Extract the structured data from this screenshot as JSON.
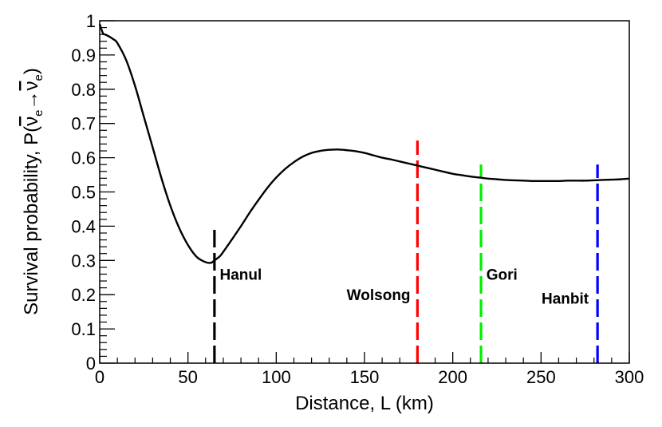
{
  "chart_data": {
    "type": "line",
    "title": "",
    "xlabel": "Distance, L (km)",
    "ylabel": "Survival probability, P(̅νₑ→̅νₑ)",
    "ylabel_parts": {
      "prefix": "Survival probability, P(",
      "nu1": "ν",
      "sub1": "e",
      "arrow": "→",
      "nu2": "ν",
      "sub2": "e",
      "suffix": ")"
    },
    "xlim": [
      0,
      300
    ],
    "ylim": [
      0,
      1
    ],
    "x_ticks": [
      "0",
      "50",
      "100",
      "150",
      "200",
      "250",
      "300"
    ],
    "y_ticks": [
      "0",
      "0.1",
      "0.2",
      "0.3",
      "0.4",
      "0.5",
      "0.6",
      "0.7",
      "0.8",
      "0.9",
      "1"
    ],
    "grid": false,
    "curve": {
      "x": [
        0,
        1,
        2,
        3,
        5,
        8,
        10,
        15,
        20,
        25,
        30,
        35,
        40,
        45,
        50,
        55,
        60,
        63,
        65,
        68,
        70,
        75,
        80,
        85,
        90,
        95,
        100,
        105,
        110,
        115,
        120,
        125,
        130,
        135,
        140,
        145,
        150,
        155,
        160,
        165,
        170,
        175,
        180,
        185,
        190,
        195,
        200,
        205,
        210,
        215,
        220,
        225,
        230,
        235,
        240,
        245,
        250,
        255,
        260,
        265,
        270,
        275,
        280,
        285,
        290,
        295,
        300
      ],
      "y": [
        0.99,
        0.975,
        0.962,
        0.96,
        0.955,
        0.945,
        0.935,
        0.885,
        0.81,
        0.72,
        0.63,
        0.54,
        0.46,
        0.395,
        0.345,
        0.31,
        0.295,
        0.293,
        0.3,
        0.312,
        0.325,
        0.362,
        0.4,
        0.44,
        0.477,
        0.512,
        0.542,
        0.567,
        0.587,
        0.603,
        0.614,
        0.62,
        0.623,
        0.624,
        0.622,
        0.619,
        0.614,
        0.607,
        0.6,
        0.595,
        0.589,
        0.583,
        0.577,
        0.571,
        0.565,
        0.559,
        0.553,
        0.549,
        0.545,
        0.542,
        0.539,
        0.537,
        0.535,
        0.534,
        0.533,
        0.532,
        0.532,
        0.532,
        0.532,
        0.533,
        0.533,
        0.533,
        0.534,
        0.535,
        0.536,
        0.537,
        0.539
      ],
      "color": "#000000"
    },
    "reactors": [
      {
        "name": "Hanul",
        "x": 65,
        "y_top": 0.4,
        "color": "#000000",
        "label_x": 68,
        "label_y": 0.26,
        "anchor": "start"
      },
      {
        "name": "Wolsong",
        "x": 180,
        "y_top": 0.65,
        "color": "#ff0000",
        "label_x": 176,
        "label_y": 0.2,
        "anchor": "end"
      },
      {
        "name": "Gori",
        "x": 216,
        "y_top": 0.58,
        "color": "#00ee00",
        "label_x": 219,
        "label_y": 0.26,
        "anchor": "start"
      },
      {
        "name": "Hanbit",
        "x": 282,
        "y_top": 0.58,
        "color": "#0000ff",
        "label_x": 277,
        "label_y": 0.19,
        "anchor": "end"
      }
    ]
  }
}
